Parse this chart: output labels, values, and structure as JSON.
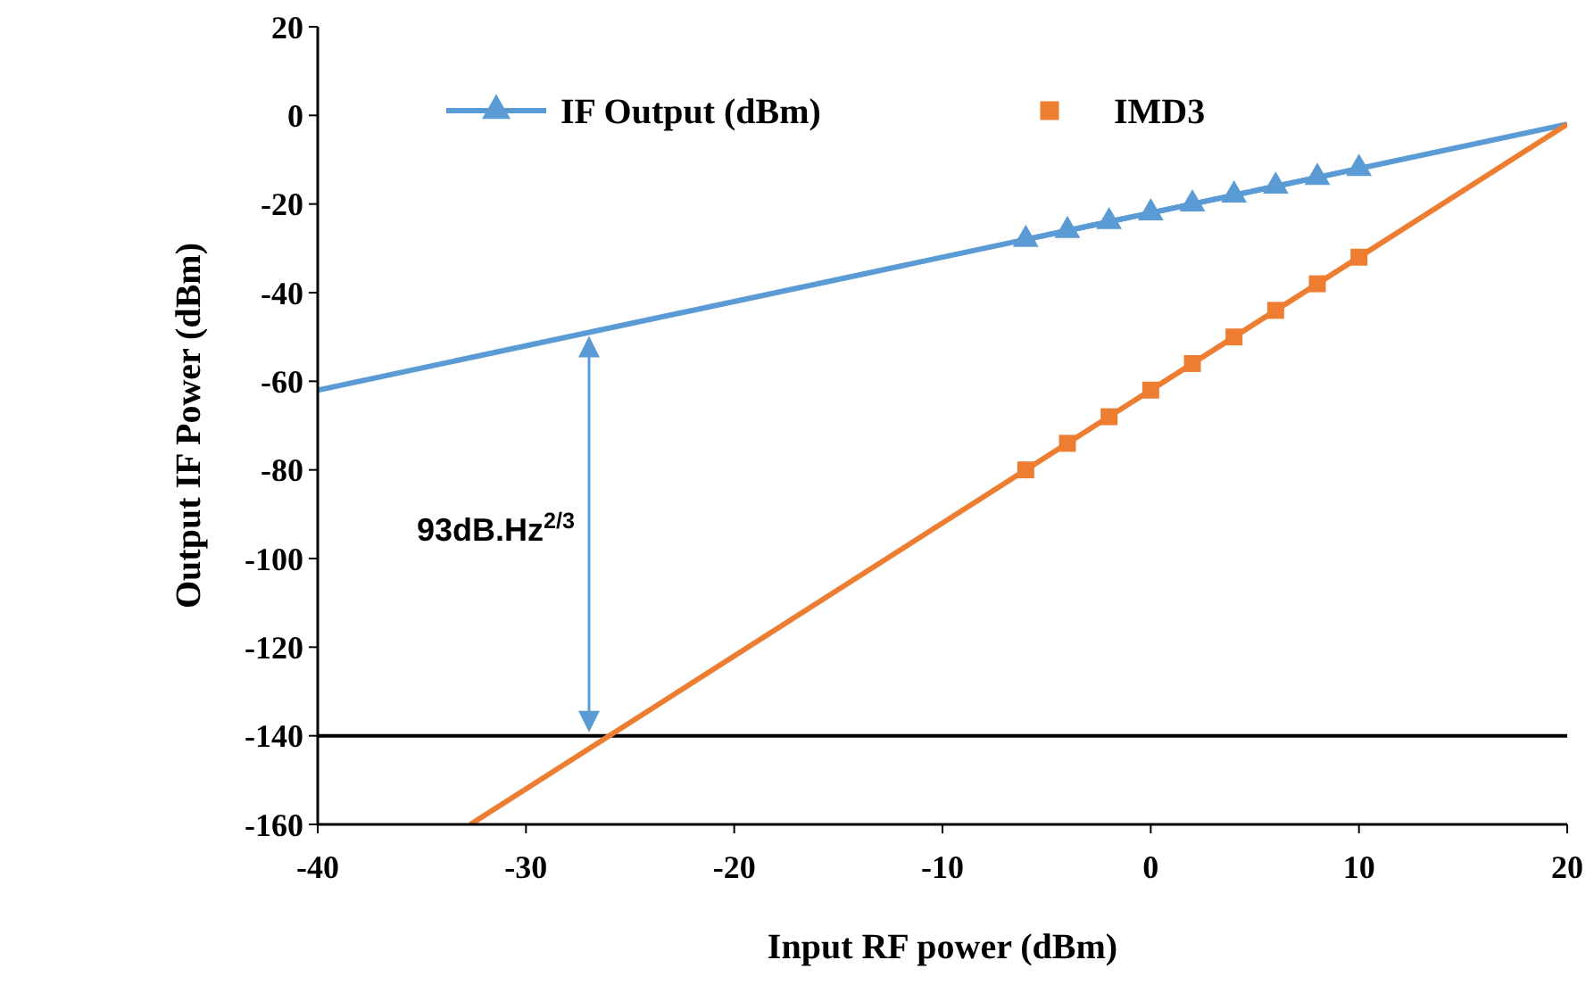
{
  "chart_data": {
    "type": "scatter",
    "xlabel": "Input RF power (dBm)",
    "ylabel": "Output IF Power (dBm)",
    "xlim": [
      -40,
      20
    ],
    "xticks": [
      -40,
      -30,
      -20,
      -10,
      0,
      10,
      20
    ],
    "ylim": [
      -160,
      20
    ],
    "yticks": [
      -160,
      -140,
      -120,
      -100,
      -80,
      -60,
      -40,
      -20,
      0,
      20
    ],
    "grid": false,
    "legend": "top",
    "series": [
      {
        "name": "IF Output (dBm)",
        "color": "#5b9bd5",
        "type": "line",
        "marker": "triangle",
        "x": [
          -6,
          -4,
          -2,
          0,
          2,
          4,
          6,
          8,
          10
        ],
        "values": [
          -28,
          -26,
          -24,
          -22,
          -20,
          -18,
          -16,
          -14,
          -12
        ]
      },
      {
        "name": "IMD3",
        "color": "#ed7d31",
        "type": "scatter",
        "marker": "square",
        "x": [
          -6,
          -4,
          -2,
          0,
          2,
          4,
          6,
          8,
          10
        ],
        "values": [
          -80,
          -74,
          -68,
          -62,
          -56,
          -50,
          -44,
          -38,
          -32
        ]
      },
      {
        "color": "#5b9bd5",
        "type": "line",
        "marker": "none",
        "x": [
          -40,
          20
        ],
        "values": [
          -62,
          -2
        ]
      },
      {
        "color": "#ed7d31",
        "type": "line",
        "marker": "none",
        "x": [
          -32.67,
          20
        ],
        "values": [
          -160,
          -2
        ]
      }
    ],
    "ref_lines": [
      {
        "axis": "y",
        "value": -140,
        "color": "#000000"
      }
    ],
    "annotations": [
      "93dB.Hz$^{2/3}$"
    ]
  }
}
